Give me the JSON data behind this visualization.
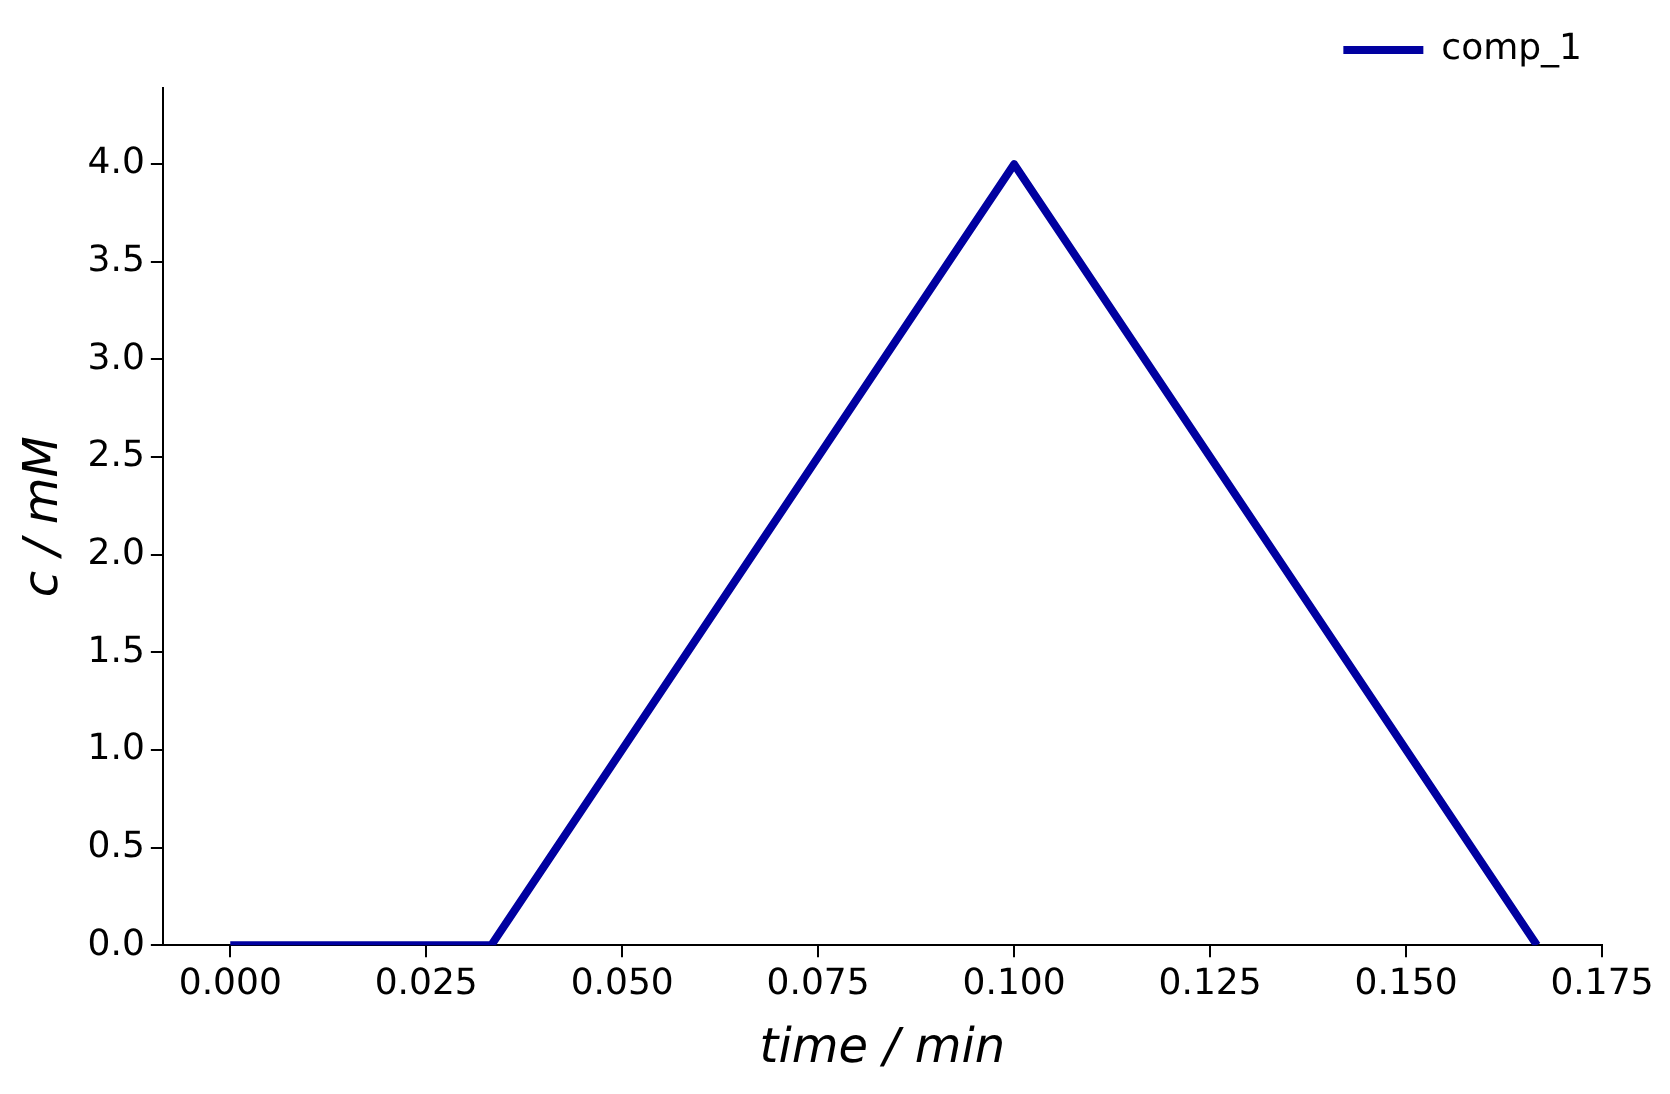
{
  "chart_data": {
    "type": "line",
    "xlabel": "time / min",
    "ylabel": "c / mM",
    "x": [
      0,
      0.0333,
      0.1,
      0.1667
    ],
    "series": [
      {
        "name": "comp_1",
        "color": "#0000a0",
        "values": [
          0,
          0,
          4,
          0
        ]
      }
    ],
    "xlim": [
      -0.0086,
      0.175
    ],
    "xticks": [
      {
        "value": 0,
        "label": "0.000"
      },
      {
        "value": 0.025,
        "label": "0.025"
      },
      {
        "value": 0.05,
        "label": "0.050"
      },
      {
        "value": 0.075,
        "label": "0.075"
      },
      {
        "value": 0.1,
        "label": "0.100"
      },
      {
        "value": 0.125,
        "label": "0.125"
      },
      {
        "value": 0.15,
        "label": "0.150"
      },
      {
        "value": 0.175,
        "label": "0.175"
      }
    ],
    "ylim": [
      0,
      4.39
    ],
    "yticks": [
      {
        "value": 0,
        "label": "0.0"
      },
      {
        "value": 0.5,
        "label": "0.5"
      },
      {
        "value": 1,
        "label": "1.0"
      },
      {
        "value": 1.5,
        "label": "1.5"
      },
      {
        "value": 2,
        "label": "2.0"
      },
      {
        "value": 2.5,
        "label": "2.5"
      },
      {
        "value": 3,
        "label": "3.0"
      },
      {
        "value": 3.5,
        "label": "3.5"
      },
      {
        "value": 4,
        "label": "4.0"
      }
    ],
    "grid": false,
    "legend": "top right",
    "marker": "none",
    "line_style": "solid"
  }
}
